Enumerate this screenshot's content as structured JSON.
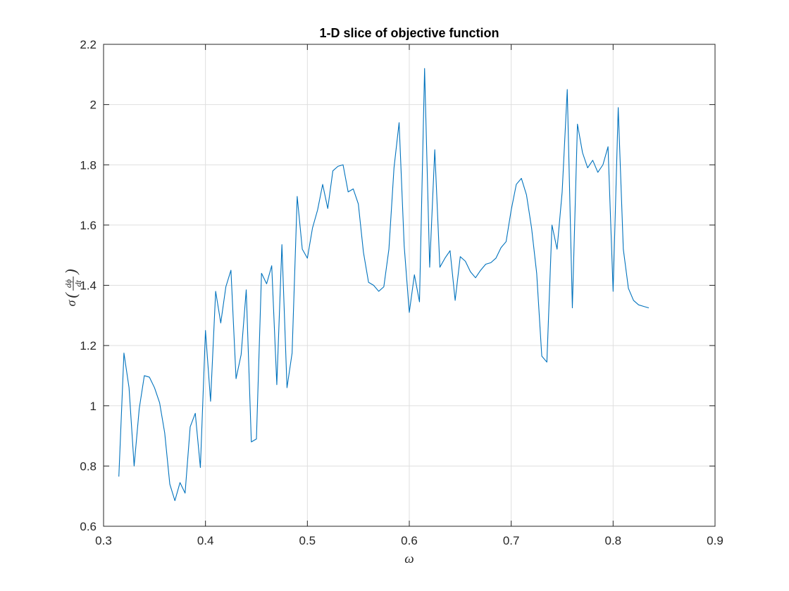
{
  "chart_data": {
    "type": "line",
    "title": "1-D slice of objective function",
    "xlabel": "ω",
    "ylabel": {
      "prefix": "σ",
      "numerator": "dϕ",
      "denominator": "dt"
    },
    "xlim": [
      0.3,
      0.9
    ],
    "ylim": [
      0.6,
      2.2
    ],
    "xticks": [
      0.3,
      0.4,
      0.5,
      0.6,
      0.7,
      0.8,
      0.9
    ],
    "xtick_labels": [
      "0.3",
      "0.4",
      "0.5",
      "0.6",
      "0.7",
      "0.8",
      "0.9"
    ],
    "yticks": [
      0.6,
      0.8,
      1.0,
      1.2,
      1.4,
      1.6,
      1.8,
      2.0,
      2.2
    ],
    "ytick_labels": [
      "0.6",
      "0.8",
      "1",
      "1.2",
      "1.4",
      "1.6",
      "1.8",
      "2",
      "2.2"
    ],
    "grid": true,
    "series": [
      {
        "color": "#0072BD",
        "x": [
          0.315,
          0.32,
          0.325,
          0.33,
          0.335,
          0.34,
          0.345,
          0.35,
          0.355,
          0.36,
          0.365,
          0.37,
          0.375,
          0.38,
          0.385,
          0.39,
          0.395,
          0.4,
          0.405,
          0.41,
          0.415,
          0.42,
          0.425,
          0.43,
          0.435,
          0.44,
          0.445,
          0.45,
          0.455,
          0.46,
          0.465,
          0.47,
          0.475,
          0.48,
          0.485,
          0.49,
          0.495,
          0.5,
          0.505,
          0.51,
          0.515,
          0.52,
          0.525,
          0.53,
          0.535,
          0.54,
          0.545,
          0.55,
          0.555,
          0.56,
          0.565,
          0.57,
          0.575,
          0.58,
          0.585,
          0.59,
          0.595,
          0.6,
          0.605,
          0.61,
          0.615,
          0.62,
          0.625,
          0.63,
          0.635,
          0.64,
          0.645,
          0.65,
          0.655,
          0.66,
          0.665,
          0.67,
          0.675,
          0.68,
          0.685,
          0.69,
          0.695,
          0.7,
          0.705,
          0.71,
          0.715,
          0.72,
          0.725,
          0.73,
          0.735,
          0.74,
          0.745,
          0.75,
          0.755,
          0.76,
          0.765,
          0.77,
          0.775,
          0.78,
          0.785,
          0.79,
          0.795,
          0.8,
          0.805,
          0.81,
          0.815,
          0.82,
          0.825,
          0.83,
          0.835
        ],
        "y": [
          0.765,
          1.175,
          1.06,
          0.8,
          0.99,
          1.1,
          1.095,
          1.06,
          1.01,
          0.91,
          0.74,
          0.685,
          0.745,
          0.71,
          0.93,
          0.975,
          0.795,
          1.25,
          1.015,
          1.38,
          1.275,
          1.395,
          1.45,
          1.09,
          1.17,
          1.385,
          0.88,
          0.89,
          1.44,
          1.405,
          1.465,
          1.07,
          1.535,
          1.06,
          1.175,
          1.695,
          1.52,
          1.49,
          1.59,
          1.65,
          1.735,
          1.655,
          1.78,
          1.795,
          1.8,
          1.71,
          1.72,
          1.67,
          1.51,
          1.41,
          1.4,
          1.38,
          1.395,
          1.52,
          1.79,
          1.94,
          1.53,
          1.31,
          1.435,
          1.345,
          2.12,
          1.46,
          1.85,
          1.46,
          1.49,
          1.515,
          1.35,
          1.495,
          1.48,
          1.445,
          1.425,
          1.45,
          1.47,
          1.475,
          1.49,
          1.525,
          1.545,
          1.65,
          1.735,
          1.755,
          1.7,
          1.59,
          1.44,
          1.165,
          1.145,
          1.6,
          1.52,
          1.71,
          2.05,
          1.325,
          1.935,
          1.84,
          1.79,
          1.815,
          1.775,
          1.8,
          1.86,
          1.38,
          1.99,
          1.52,
          1.39,
          1.35,
          1.335,
          1.33,
          1.325
        ]
      }
    ]
  }
}
